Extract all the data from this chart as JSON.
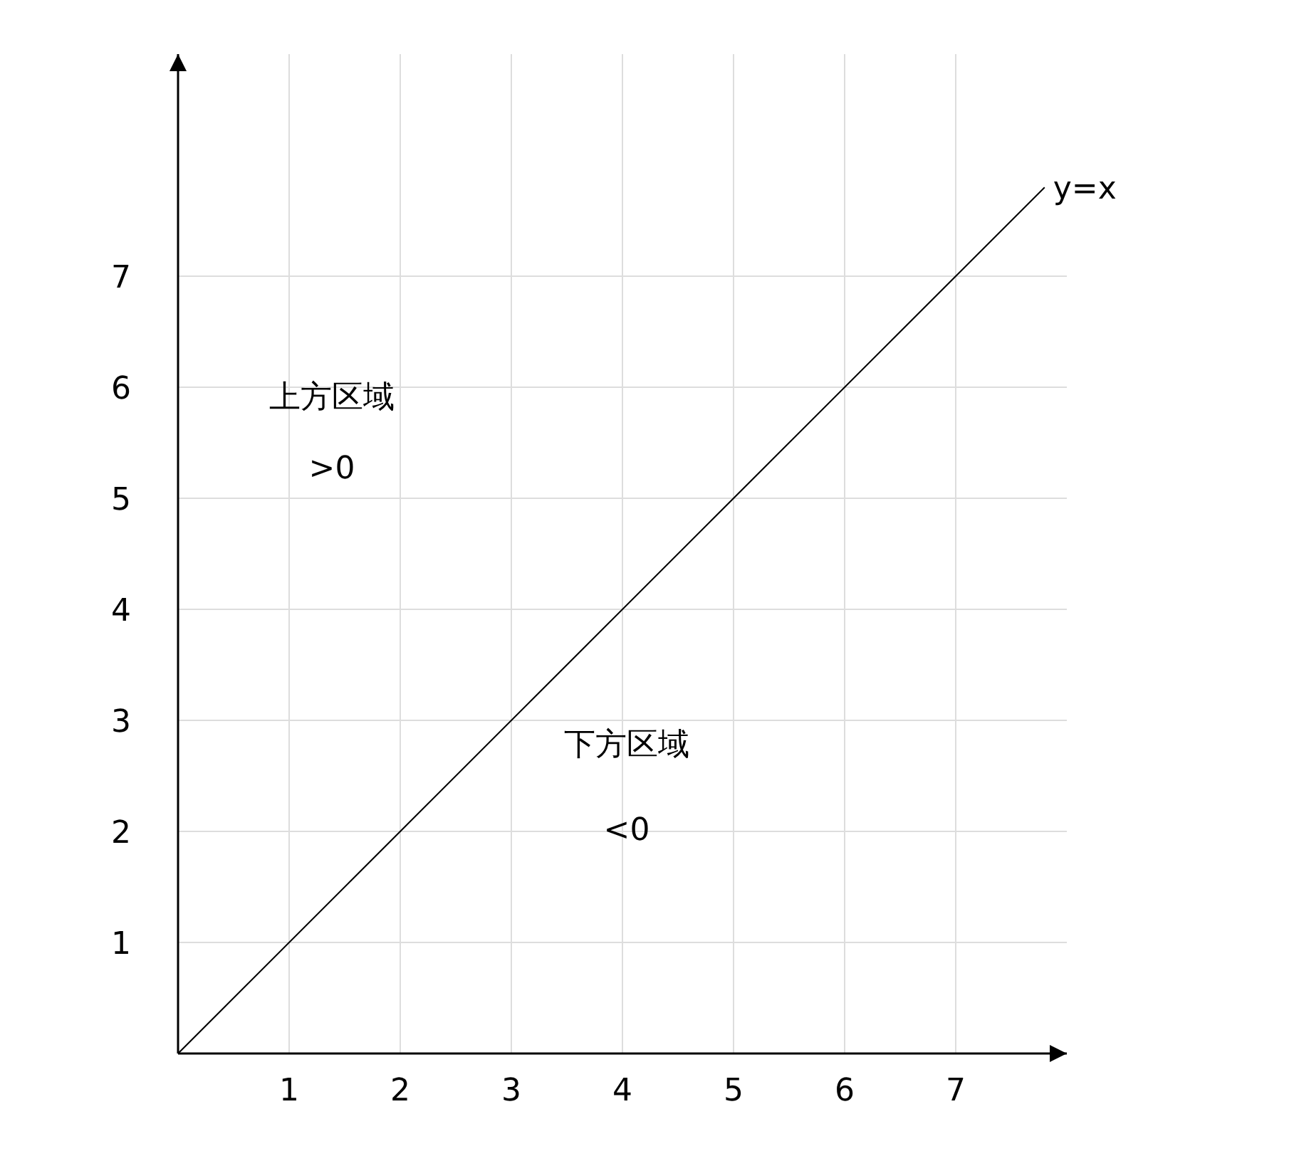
{
  "chart_data": {
    "type": "line",
    "x": [
      0,
      7.8
    ],
    "series": [
      {
        "name": "y=x",
        "color": "#000000",
        "values": [
          0,
          7.8
        ]
      }
    ],
    "xlim": [
      0,
      8
    ],
    "ylim": [
      0,
      9
    ],
    "xticks": [
      1,
      2,
      3,
      4,
      5,
      6,
      7
    ],
    "yticks": [
      1,
      2,
      3,
      4,
      5,
      6,
      7
    ],
    "grid": true,
    "annotations": [
      "上方区域",
      ">0",
      "下方区域",
      "<0"
    ]
  }
}
